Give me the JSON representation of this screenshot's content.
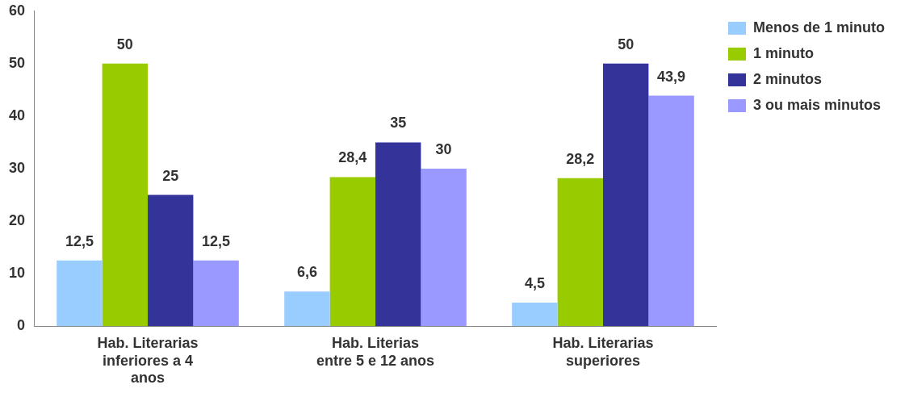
{
  "chart_data": {
    "type": "bar",
    "categories": [
      "Hab. Literarias inferiores a 4 anos",
      "Hab. Literias entre 5 e 12 anos",
      "Hab. Literarias superiores"
    ],
    "series": [
      {
        "name": "Menos de 1 minuto",
        "color": "#99ccff",
        "values": [
          12.5,
          6.6,
          4.5
        ],
        "value_labels": [
          "12,5",
          "6,6",
          "4,5"
        ]
      },
      {
        "name": "1 minuto",
        "color": "#99cc00",
        "values": [
          50,
          28.4,
          28.2
        ],
        "value_labels": [
          "50",
          "28,4",
          "28,2"
        ]
      },
      {
        "name": "2 minutos",
        "color": "#333399",
        "values": [
          25,
          35,
          50
        ],
        "value_labels": [
          "25",
          "35",
          "50"
        ]
      },
      {
        "name": "3 ou mais minutos",
        "color": "#9999ff",
        "values": [
          12.5,
          30,
          43.9
        ],
        "value_labels": [
          "12,5",
          "30",
          "43,9"
        ]
      }
    ],
    "ylim": [
      0,
      60
    ],
    "yticks": [
      0,
      10,
      20,
      30,
      40,
      50,
      60
    ],
    "grid": false,
    "legend": "right",
    "data_labels": true
  }
}
